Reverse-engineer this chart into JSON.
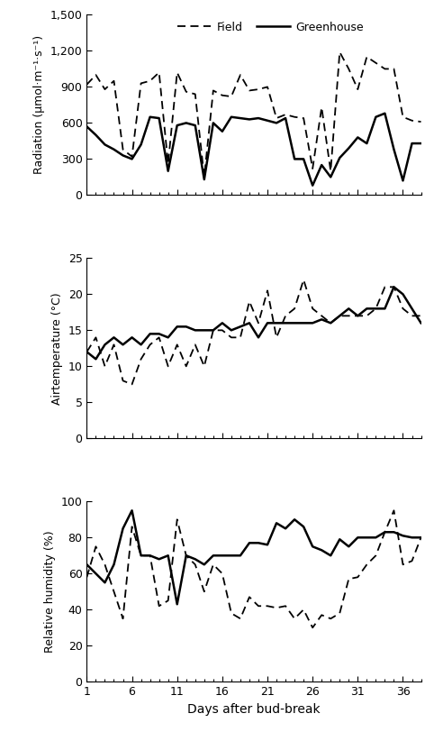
{
  "days": [
    1,
    2,
    3,
    4,
    5,
    6,
    7,
    8,
    9,
    10,
    11,
    12,
    13,
    14,
    15,
    16,
    17,
    18,
    19,
    20,
    21,
    22,
    23,
    24,
    25,
    26,
    27,
    28,
    29,
    30,
    31,
    32,
    33,
    34,
    35,
    36,
    37,
    38
  ],
  "radiation_field": [
    920,
    1000,
    880,
    950,
    380,
    320,
    930,
    950,
    1020,
    260,
    1020,
    860,
    840,
    150,
    870,
    830,
    820,
    1000,
    870,
    880,
    900,
    640,
    670,
    650,
    640,
    220,
    730,
    200,
    1190,
    1050,
    880,
    1150,
    1100,
    1050,
    1050,
    650,
    620,
    610
  ],
  "radiation_gh": [
    570,
    500,
    420,
    380,
    330,
    300,
    420,
    650,
    640,
    200,
    580,
    600,
    580,
    130,
    600,
    530,
    650,
    640,
    630,
    640,
    620,
    600,
    640,
    300,
    300,
    80,
    250,
    150,
    310,
    390,
    480,
    430,
    650,
    680,
    380,
    120,
    430,
    430
  ],
  "temp_field": [
    12,
    14,
    10,
    13,
    8,
    7.5,
    11,
    13,
    14,
    10,
    13,
    10,
    13,
    10,
    15,
    15,
    14,
    14,
    19,
    16,
    20.5,
    14,
    17,
    18,
    22,
    18,
    17,
    16,
    17,
    17,
    17,
    17,
    18,
    21,
    21,
    18,
    17,
    17
  ],
  "temp_gh": [
    12,
    11,
    13,
    14,
    13,
    14,
    13,
    14.5,
    14.5,
    14,
    15.5,
    15.5,
    15,
    15,
    15,
    16,
    15,
    15.5,
    16,
    14,
    16,
    16,
    16,
    16,
    16,
    16,
    16.5,
    16,
    17,
    18,
    17,
    18,
    18,
    18,
    21,
    20,
    18,
    16
  ],
  "humid_field": [
    58,
    75,
    65,
    50,
    35,
    86,
    70,
    70,
    42,
    45,
    90,
    70,
    65,
    50,
    65,
    60,
    38,
    35,
    47,
    42,
    42,
    41,
    42,
    35,
    40,
    30,
    37,
    35,
    38,
    57,
    58,
    65,
    70,
    83,
    95,
    65,
    67,
    80
  ],
  "humid_gh": [
    65,
    60,
    55,
    65,
    85,
    95,
    70,
    70,
    68,
    70,
    43,
    70,
    68,
    65,
    70,
    70,
    70,
    70,
    77,
    77,
    76,
    88,
    85,
    90,
    86,
    75,
    73,
    70,
    79,
    75,
    80,
    80,
    80,
    83,
    83,
    81,
    80,
    80
  ],
  "ylabel1": "Radiation (μmol·m⁻¹·s⁻¹)",
  "ylabel2": "Airtemperature (°C)",
  "ylabel3": "Relative humidity (%)",
  "xlabel": "Days after bud-break",
  "legend_field": "Field",
  "legend_gh": "Greenhouse",
  "yticks1": [
    0,
    300,
    600,
    900,
    1200,
    1500
  ],
  "ytick_labels1": [
    "0",
    "300",
    "600",
    "900",
    "1,200",
    "1,500"
  ],
  "yticks2": [
    0,
    5,
    10,
    15,
    20,
    25
  ],
  "ytick_labels2": [
    "0",
    "5",
    "10",
    "15",
    "20",
    "25"
  ],
  "yticks3": [
    0,
    20,
    40,
    60,
    80,
    100
  ],
  "ytick_labels3": [
    "0",
    "20",
    "40",
    "60",
    "80",
    "100"
  ],
  "xticks": [
    1,
    6,
    11,
    16,
    21,
    26,
    31,
    36
  ],
  "xlim": [
    1,
    38
  ],
  "ylim1": [
    0,
    1500
  ],
  "ylim2": [
    0,
    25
  ],
  "ylim3": [
    0,
    100
  ]
}
